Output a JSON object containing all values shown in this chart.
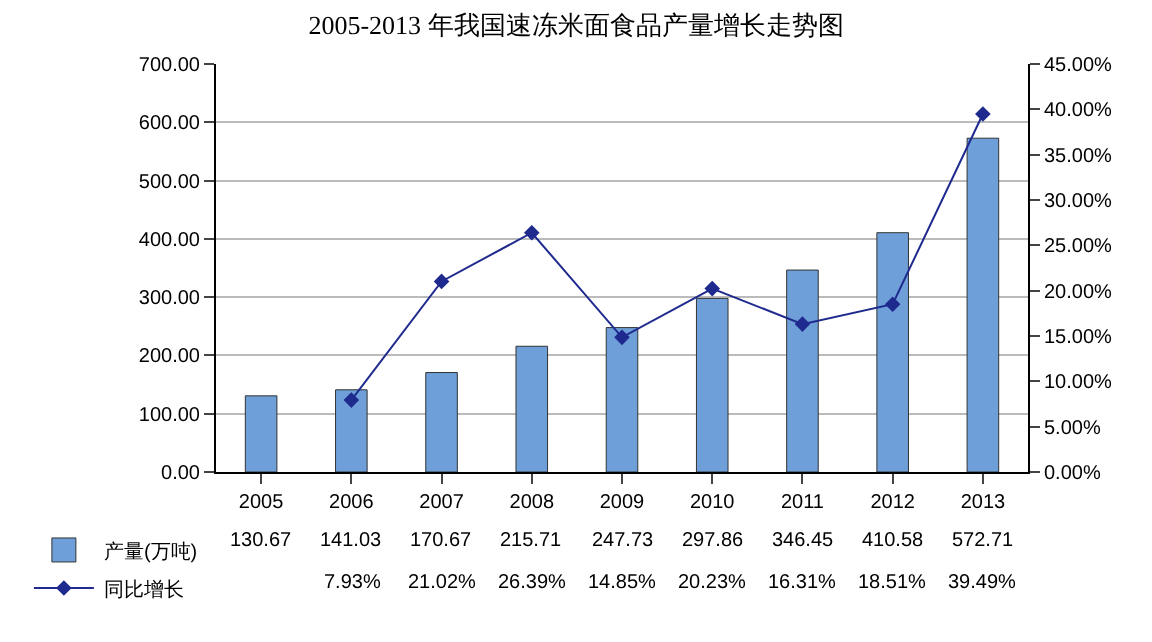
{
  "chart_data": {
    "type": "bar",
    "title": "2005-2013 年我国速冻米面食品产量增长走势图",
    "categories": [
      "2005",
      "2006",
      "2007",
      "2008",
      "2009",
      "2010",
      "2011",
      "2012",
      "2013"
    ],
    "series": [
      {
        "name": "产量(万吨)",
        "color": "#6f9fd8",
        "values": [
          130.67,
          141.03,
          170.67,
          215.71,
          247.73,
          297.86,
          346.45,
          410.58,
          572.71
        ],
        "value_labels": [
          "130.67",
          "141.03",
          "170.67",
          "215.71",
          "247.73",
          "297.86",
          "346.45",
          "410.58",
          "572.71"
        ]
      },
      {
        "name": "同比增长",
        "type": "line",
        "axis": "y2",
        "color": "#1f2a8f",
        "values": [
          null,
          7.93,
          21.02,
          26.39,
          14.85,
          20.23,
          16.31,
          18.51,
          39.49
        ],
        "value_labels": [
          null,
          "7.93%",
          "21.02%",
          "26.39%",
          "14.85%",
          "20.23%",
          "16.31%",
          "18.51%",
          "39.49%"
        ]
      }
    ],
    "ylim": [
      0,
      700
    ],
    "yticks": [
      {
        "value": 0,
        "label": "0.00"
      },
      {
        "value": 100,
        "label": "100.00"
      },
      {
        "value": 200,
        "label": "200.00"
      },
      {
        "value": 300,
        "label": "300.00"
      },
      {
        "value": 400,
        "label": "400.00"
      },
      {
        "value": 500,
        "label": "500.00"
      },
      {
        "value": 600,
        "label": "600.00"
      },
      {
        "value": 700,
        "label": "700.00"
      }
    ],
    "y2lim": [
      0,
      45
    ],
    "y2ticks": [
      {
        "value": 0,
        "label": "0.00%"
      },
      {
        "value": 5,
        "label": "5.00%"
      },
      {
        "value": 10,
        "label": "10.00%"
      },
      {
        "value": 15,
        "label": "15.00%"
      },
      {
        "value": 20,
        "label": "20.00%"
      },
      {
        "value": 25,
        "label": "25.00%"
      },
      {
        "value": 30,
        "label": "30.00%"
      },
      {
        "value": 35,
        "label": "35.00%"
      },
      {
        "value": 40,
        "label": "40.00%"
      },
      {
        "value": 45,
        "label": "45.00%"
      }
    ],
    "grid": "y",
    "legend": "bottom",
    "marker": "diamond",
    "line_style": "solid"
  }
}
